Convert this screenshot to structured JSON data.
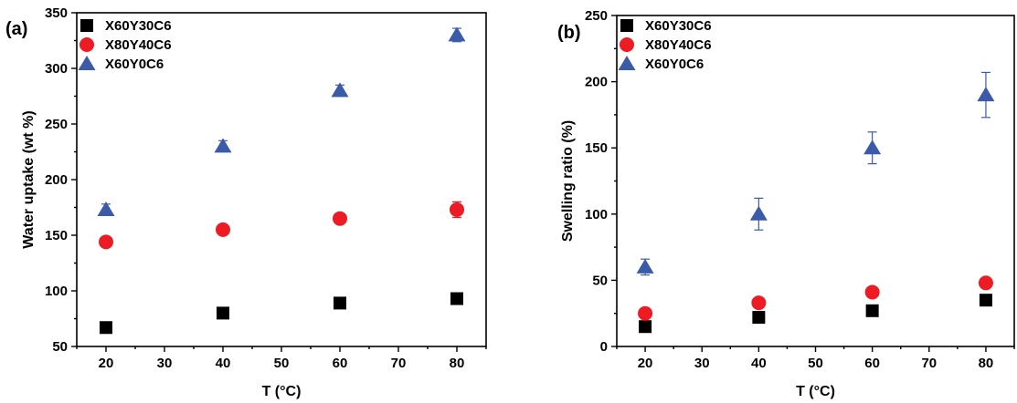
{
  "chart_data": [
    {
      "type": "scatter",
      "panel_label": "(a)",
      "xlabel": "T (°C)",
      "ylabel": "Water uptake (wt %)",
      "xlim": [
        15,
        85
      ],
      "ylim": [
        50,
        350
      ],
      "xticks": [
        20,
        30,
        40,
        50,
        60,
        70,
        80
      ],
      "yticks": [
        50,
        100,
        150,
        200,
        250,
        300,
        350
      ],
      "legend_position": "top-left",
      "x": [
        20,
        40,
        60,
        80
      ],
      "series": [
        {
          "name": "X60Y30C6",
          "marker": "square",
          "color": "#000000",
          "values": [
            67,
            80,
            89,
            93
          ],
          "errors": [
            2,
            2,
            4,
            5
          ]
        },
        {
          "name": "X80Y40C6",
          "marker": "circle",
          "color": "#ed1c24",
          "values": [
            144,
            155,
            165,
            173
          ],
          "errors": [
            2,
            3,
            3,
            7
          ]
        },
        {
          "name": "X60Y0C6",
          "marker": "triangle",
          "color": "#3b5aa8",
          "values": [
            173,
            230,
            280,
            330
          ],
          "errors": [
            5,
            5,
            5,
            6
          ]
        }
      ]
    },
    {
      "type": "scatter",
      "panel_label": "(b)",
      "xlabel": "T (°C)",
      "ylabel": "Swelling ratio (%)",
      "xlim": [
        15,
        85
      ],
      "ylim": [
        0,
        250
      ],
      "xticks": [
        20,
        30,
        40,
        50,
        60,
        70,
        80
      ],
      "yticks": [
        0,
        50,
        100,
        150,
        200,
        250
      ],
      "legend_position": "top-left",
      "x": [
        20,
        40,
        60,
        80
      ],
      "series": [
        {
          "name": "X60Y30C6",
          "marker": "square",
          "color": "#000000",
          "values": [
            15,
            22,
            27,
            35
          ],
          "errors": [
            1,
            1,
            1,
            1
          ]
        },
        {
          "name": "X80Y40C6",
          "marker": "circle",
          "color": "#ed1c24",
          "values": [
            25,
            33,
            41,
            48
          ],
          "errors": [
            1,
            1,
            1,
            1
          ]
        },
        {
          "name": "X60Y0C6",
          "marker": "triangle",
          "color": "#3b5aa8",
          "values": [
            60,
            100,
            150,
            190
          ],
          "errors": [
            6,
            12,
            12,
            17
          ]
        }
      ]
    }
  ]
}
